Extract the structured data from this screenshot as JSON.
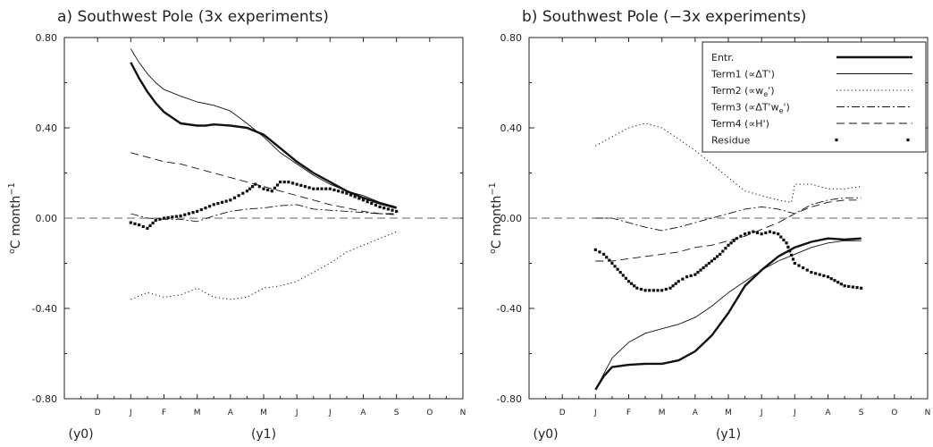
{
  "chart_data": [
    {
      "type": "line",
      "title": "a) Southwest Pole (3x experiments)",
      "ylabel": "oC month-1",
      "ylim": [
        -0.8,
        0.8
      ],
      "yticks": [
        "0.80",
        "0.40",
        "0.00",
        "-0.40",
        "-0.80"
      ],
      "ytick_values": [
        0.8,
        0.4,
        0.0,
        -0.4,
        -0.8
      ],
      "xlim": [
        0,
        12
      ],
      "month_labels": [
        "D",
        "J",
        "F",
        "M",
        "A",
        "M",
        "J",
        "J",
        "A",
        "S",
        "O",
        "N"
      ],
      "month_positions": [
        1,
        2,
        3,
        4,
        5,
        6,
        7,
        8,
        9,
        10,
        11,
        12
      ],
      "year_labels": [
        {
          "text": "(y0)",
          "x": 0.5
        },
        {
          "text": "(y1)",
          "x": 6
        }
      ],
      "zero_line": true,
      "series": [
        {
          "name": "Entr.",
          "style": "thick",
          "x": [
            2,
            2.25,
            2.5,
            2.75,
            3,
            3.5,
            4,
            4.25,
            4.5,
            5,
            5.5,
            6,
            6.5,
            7,
            7.5,
            8,
            8.5,
            9,
            9.5,
            10
          ],
          "y": [
            0.69,
            0.62,
            0.56,
            0.51,
            0.47,
            0.42,
            0.41,
            0.41,
            0.415,
            0.41,
            0.4,
            0.37,
            0.31,
            0.25,
            0.2,
            0.16,
            0.12,
            0.09,
            0.065,
            0.045
          ]
        },
        {
          "name": "Term1 (∝ΔT')",
          "style": "thin",
          "x": [
            2,
            2.25,
            2.5,
            2.75,
            3,
            3.5,
            4,
            4.5,
            5,
            5.5,
            6,
            6.5,
            7,
            7.5,
            8,
            8.5,
            9,
            9.5,
            10
          ],
          "y": [
            0.75,
            0.69,
            0.64,
            0.6,
            0.57,
            0.54,
            0.515,
            0.5,
            0.475,
            0.42,
            0.36,
            0.29,
            0.24,
            0.19,
            0.15,
            0.12,
            0.1,
            0.07,
            0.05
          ]
        },
        {
          "name": "Term2 (∝we')",
          "style": "dotted",
          "x": [
            2,
            2.5,
            3,
            3.5,
            4,
            4.5,
            5,
            5.5,
            6,
            6.5,
            7,
            7.5,
            8,
            8.5,
            9,
            9.5,
            10
          ],
          "y": [
            -0.36,
            -0.33,
            -0.35,
            -0.34,
            -0.31,
            -0.35,
            -0.36,
            -0.35,
            -0.31,
            -0.3,
            -0.28,
            -0.24,
            -0.2,
            -0.15,
            -0.12,
            -0.09,
            -0.06
          ]
        },
        {
          "name": "Term3 (∝ΔT'we')",
          "style": "dashdot",
          "x": [
            2,
            2.5,
            3,
            3.5,
            4,
            4.5,
            5,
            5.5,
            6,
            6.5,
            7,
            7.5,
            8,
            8.5,
            9,
            9.5,
            10
          ],
          "y": [
            0.02,
            0.0,
            -0.005,
            -0.005,
            -0.015,
            0.01,
            0.03,
            0.04,
            0.045,
            0.055,
            0.06,
            0.04,
            0.035,
            0.03,
            0.025,
            0.02,
            0.02
          ]
        },
        {
          "name": "Term4 (∝H')",
          "style": "dashed",
          "x": [
            2,
            2.5,
            3,
            3.5,
            4,
            4.5,
            5,
            5.5,
            6,
            6.5,
            7,
            7.5,
            8,
            8.5,
            9,
            9.5,
            10
          ],
          "y": [
            0.29,
            0.27,
            0.25,
            0.24,
            0.22,
            0.2,
            0.18,
            0.16,
            0.14,
            0.12,
            0.1,
            0.08,
            0.06,
            0.045,
            0.03,
            0.02,
            0.015
          ]
        },
        {
          "name": "Residue",
          "style": "squares",
          "x": [
            2,
            2.25,
            2.5,
            2.75,
            3,
            3.5,
            4,
            4.5,
            5,
            5.25,
            5.5,
            5.75,
            6,
            6.25,
            6.5,
            6.75,
            7,
            7.5,
            8,
            8.5,
            9,
            9.5,
            10
          ],
          "y": [
            -0.02,
            -0.03,
            -0.045,
            -0.01,
            0.0,
            0.01,
            0.03,
            0.06,
            0.08,
            0.1,
            0.12,
            0.15,
            0.13,
            0.12,
            0.16,
            0.16,
            0.15,
            0.13,
            0.13,
            0.11,
            0.08,
            0.05,
            0.03
          ]
        }
      ]
    },
    {
      "type": "line",
      "title": "b) Southwest Pole (−3x experiments)",
      "ylabel": "oC month-1",
      "ylim": [
        -0.8,
        0.8
      ],
      "yticks": [
        "0.80",
        "0.40",
        "0.00",
        "-0.40",
        "-0.80"
      ],
      "ytick_values": [
        0.8,
        0.4,
        0.0,
        -0.4,
        -0.8
      ],
      "xlim": [
        0,
        12
      ],
      "month_labels": [
        "D",
        "J",
        "F",
        "M",
        "A",
        "M",
        "J",
        "J",
        "A",
        "S",
        "O",
        "N"
      ],
      "month_positions": [
        1,
        2,
        3,
        4,
        5,
        6,
        7,
        8,
        9,
        10,
        11,
        12
      ],
      "year_labels": [
        {
          "text": "(y0)",
          "x": 0.5
        },
        {
          "text": "(y1)",
          "x": 6
        }
      ],
      "zero_line": true,
      "legend": {
        "position": "top-right",
        "entries": [
          {
            "label": "Entr.",
            "style": "thick"
          },
          {
            "label": "Term1 (∝ΔT')",
            "style": "thin"
          },
          {
            "label": "Term2 (∝we')",
            "style": "dotted"
          },
          {
            "label": "Term3 (∝ΔT'we')",
            "style": "dashdot"
          },
          {
            "label": "Term4 (∝H')",
            "style": "dashed"
          },
          {
            "label": "Residue",
            "style": "squares"
          }
        ]
      },
      "series": [
        {
          "name": "Entr.",
          "style": "thick",
          "x": [
            2,
            2.25,
            2.5,
            3,
            3.5,
            4,
            4.5,
            5,
            5.5,
            6,
            6.5,
            7,
            7.5,
            8,
            8.5,
            9,
            9.5,
            10
          ],
          "y": [
            -0.76,
            -0.7,
            -0.66,
            -0.65,
            -0.645,
            -0.645,
            -0.63,
            -0.59,
            -0.52,
            -0.42,
            -0.3,
            -0.23,
            -0.17,
            -0.13,
            -0.105,
            -0.09,
            -0.095,
            -0.09
          ]
        },
        {
          "name": "Term1 (∝ΔT')",
          "style": "thin",
          "x": [
            2,
            2.5,
            3,
            3.5,
            4,
            4.5,
            5,
            5.5,
            6,
            6.5,
            7,
            7.5,
            8,
            8.5,
            9,
            9.5,
            10
          ],
          "y": [
            -0.76,
            -0.62,
            -0.55,
            -0.51,
            -0.49,
            -0.47,
            -0.44,
            -0.39,
            -0.33,
            -0.28,
            -0.23,
            -0.19,
            -0.16,
            -0.13,
            -0.11,
            -0.1,
            -0.1
          ]
        },
        {
          "name": "Term2 (∝we')",
          "style": "dotted",
          "x": [
            2,
            2.5,
            3,
            3.5,
            4,
            4.5,
            5,
            5.5,
            6,
            6.5,
            7,
            7.5,
            7.9,
            8,
            8.5,
            9,
            9.5,
            10
          ],
          "y": [
            0.32,
            0.36,
            0.4,
            0.42,
            0.4,
            0.35,
            0.3,
            0.24,
            0.18,
            0.12,
            0.1,
            0.08,
            0.07,
            0.15,
            0.15,
            0.13,
            0.13,
            0.14
          ]
        },
        {
          "name": "Term3 (∝ΔT'we')",
          "style": "dashdot",
          "x": [
            2,
            2.5,
            3,
            3.5,
            4,
            4.5,
            5,
            5.5,
            6,
            6.5,
            7,
            7.5,
            8,
            8.5,
            9,
            9.5,
            10
          ],
          "y": [
            0.0,
            0.0,
            -0.02,
            -0.04,
            -0.055,
            -0.04,
            -0.02,
            0.0,
            0.02,
            0.04,
            0.05,
            0.04,
            0.02,
            0.06,
            0.08,
            0.09,
            0.09
          ]
        },
        {
          "name": "Term4 (∝H')",
          "style": "dashed",
          "x": [
            2,
            2.5,
            3,
            3.5,
            4,
            4.5,
            5,
            5.5,
            6,
            6.5,
            7,
            7.5,
            8,
            8.5,
            9,
            9.5,
            10
          ],
          "y": [
            -0.19,
            -0.19,
            -0.18,
            -0.17,
            -0.16,
            -0.15,
            -0.13,
            -0.12,
            -0.1,
            -0.08,
            -0.05,
            -0.02,
            0.02,
            0.05,
            0.07,
            0.08,
            0.08
          ]
        },
        {
          "name": "Residue",
          "style": "squares",
          "x": [
            2,
            2.25,
            2.5,
            2.75,
            3,
            3.25,
            3.5,
            3.75,
            4,
            4.25,
            4.5,
            4.75,
            5,
            5.25,
            5.5,
            5.75,
            6,
            6.25,
            6.5,
            6.75,
            7,
            7.25,
            7.5,
            7.75,
            8,
            8.25,
            8.5,
            9,
            9.5,
            10
          ],
          "y": [
            -0.14,
            -0.16,
            -0.2,
            -0.24,
            -0.28,
            -0.31,
            -0.32,
            -0.32,
            -0.32,
            -0.31,
            -0.28,
            -0.26,
            -0.25,
            -0.22,
            -0.19,
            -0.16,
            -0.12,
            -0.09,
            -0.07,
            -0.06,
            -0.07,
            -0.06,
            -0.07,
            -0.11,
            -0.2,
            -0.22,
            -0.24,
            -0.26,
            -0.3,
            -0.31
          ]
        }
      ]
    }
  ]
}
